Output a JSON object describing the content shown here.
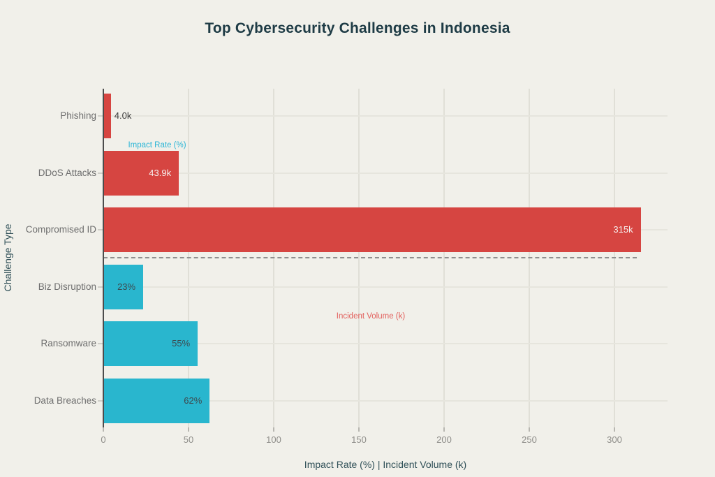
{
  "title": "Top Cybersecurity Challenges in Indonesia",
  "colors": {
    "background": "#f1f0ea",
    "incident_volume_bar": "#d64541",
    "impact_rate_bar": "#29b6ce",
    "title_text": "#1e3b45",
    "axis_label_text": "#2f4f57",
    "category_text": "#6e6e6e",
    "tick_text": "#8e8d89",
    "value_text_dark": "#3a3a3a",
    "value_text_light": "#f6efed",
    "value_text_on_teal": "#3d4a4f"
  },
  "chart_data": {
    "type": "bar",
    "orientation": "horizontal",
    "title": "Top Cybersecurity Challenges in Indonesia",
    "xlabel": "Impact Rate (%) | Incident Volume (k)",
    "ylabel": "Challenge Type",
    "xlim": [
      0,
      330
    ],
    "xticks": [
      0,
      50,
      100,
      150,
      200,
      250,
      300
    ],
    "grid": true,
    "categories": [
      "Phishing",
      "DDoS Attacks",
      "Compromised ID",
      "Biz Disruption",
      "Ransomware",
      "Data Breaches"
    ],
    "rows": [
      {
        "category": "Phishing",
        "value": 4.0,
        "label": "4.0k",
        "series": "Incident Volume (k)",
        "label_placement": "outside"
      },
      {
        "category": "DDoS Attacks",
        "value": 43.9,
        "label": "43.9k",
        "series": "Incident Volume (k)",
        "label_placement": "inside"
      },
      {
        "category": "Compromised ID",
        "value": 315,
        "label": "315k",
        "series": "Incident Volume (k)",
        "label_placement": "inside"
      },
      {
        "category": "Biz Disruption",
        "value": 23,
        "label": "23%",
        "series": "Impact Rate (%)",
        "label_placement": "inside"
      },
      {
        "category": "Ransomware",
        "value": 55,
        "label": "55%",
        "series": "Impact Rate (%)",
        "label_placement": "inside"
      },
      {
        "category": "Data Breaches",
        "value": 62,
        "label": "62%",
        "series": "Impact Rate (%)",
        "label_placement": "inside"
      }
    ],
    "series": [
      {
        "name": "Incident Volume (k)",
        "color": "#d64541",
        "categories": [
          "Phishing",
          "DDoS Attacks",
          "Compromised ID"
        ],
        "values": [
          4.0,
          43.9,
          315
        ]
      },
      {
        "name": "Impact Rate (%)",
        "color": "#29b6ce",
        "categories": [
          "Biz Disruption",
          "Ransomware",
          "Data Breaches"
        ],
        "values": [
          23,
          55,
          62
        ]
      }
    ],
    "annotations": [
      {
        "id": "impact-rate",
        "text": "Impact Rate (%)",
        "color": "#2bb5d6"
      },
      {
        "id": "incident-volume",
        "text": "Incident Volume (k)",
        "color": "#e25f5c"
      }
    ],
    "separator": {
      "style": "dashed",
      "between": [
        "Compromised ID",
        "Biz Disruption"
      ]
    },
    "legend_position": "none"
  }
}
